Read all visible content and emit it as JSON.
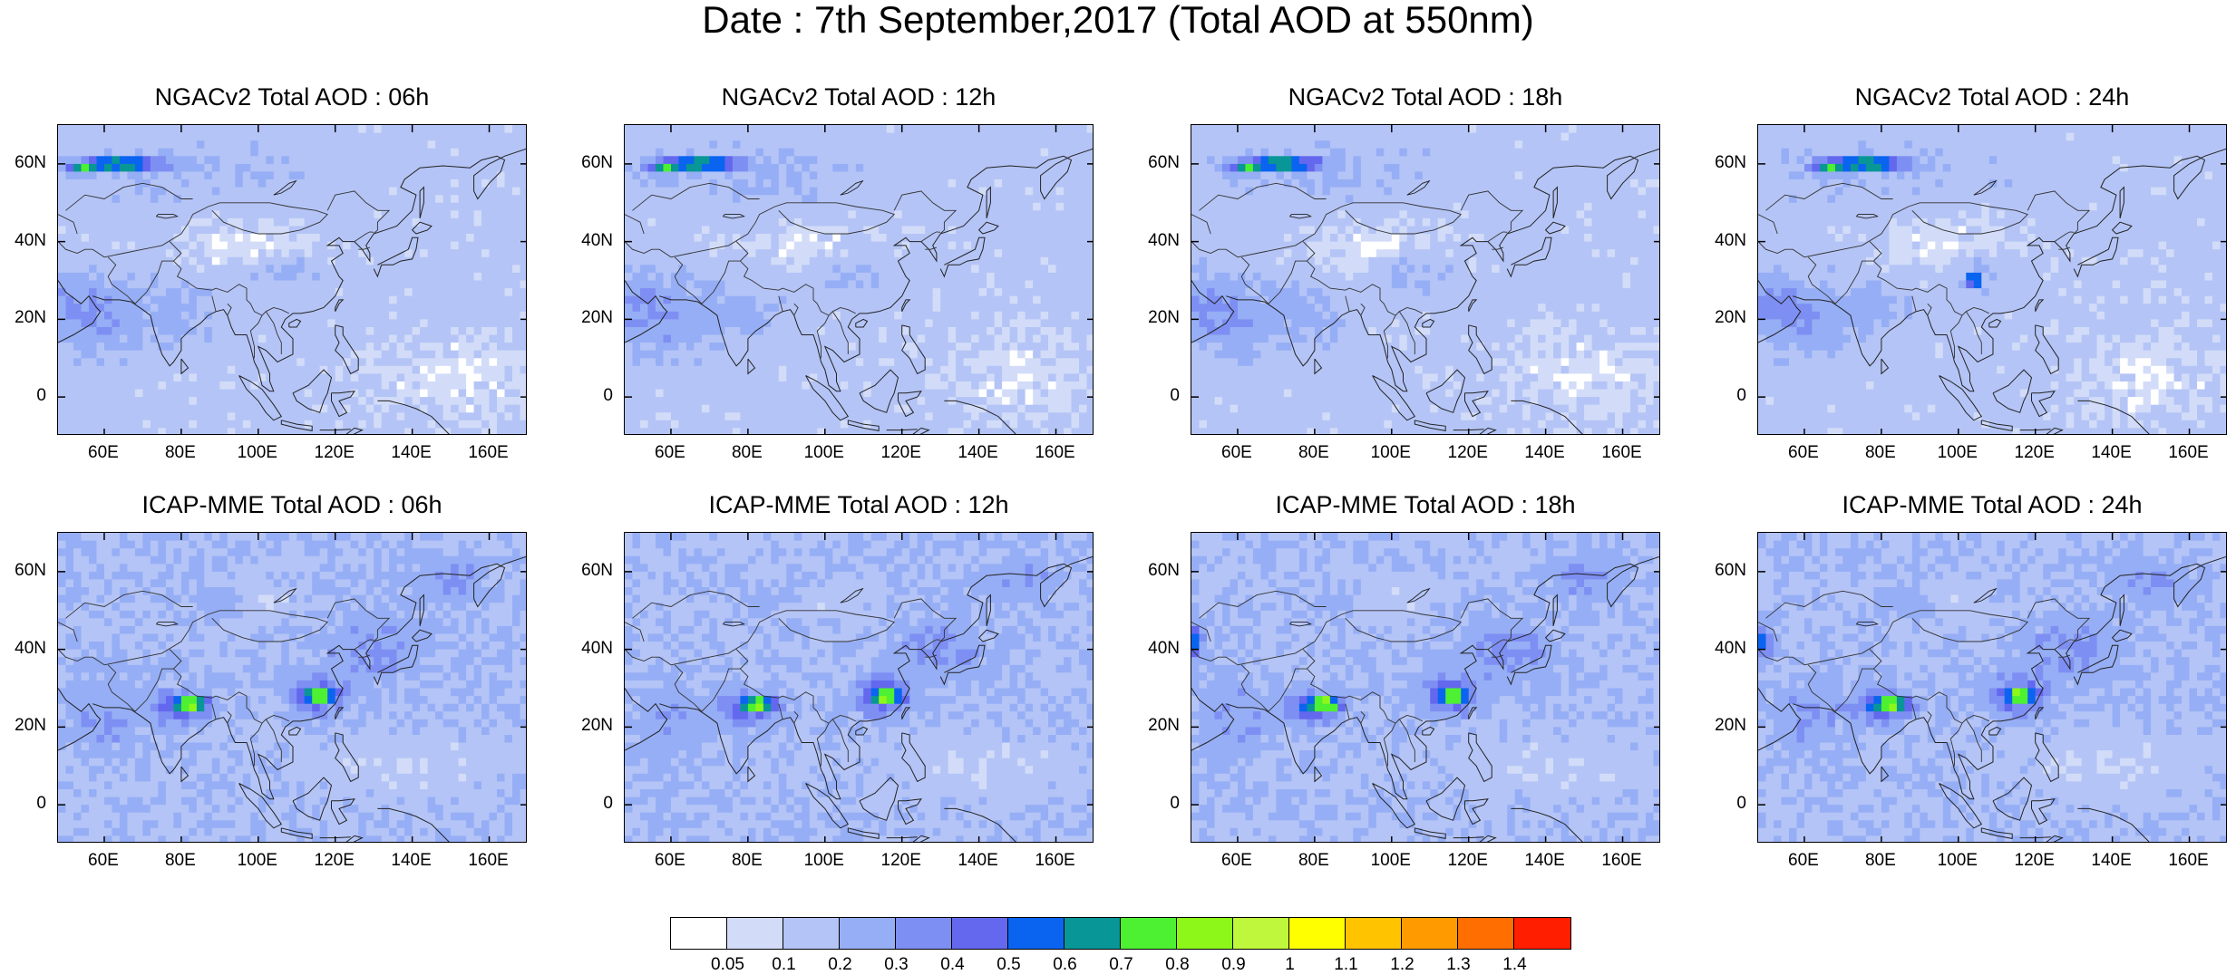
{
  "main_title": "Date : 7th September,2017 (Total AOD at 550nm)",
  "axes": {
    "lon_ticks": [
      "60E",
      "80E",
      "100E",
      "120E",
      "140E",
      "160E"
    ],
    "lon_values": [
      60,
      80,
      100,
      120,
      140,
      160
    ],
    "lat_ticks": [
      "60N",
      "40N",
      "20N",
      "0"
    ],
    "lat_values": [
      60,
      40,
      20,
      0
    ],
    "lon_range": [
      48,
      170
    ],
    "lat_range": [
      -10,
      70
    ]
  },
  "panels": [
    {
      "title": "NGACv2 Total AOD : 06h"
    },
    {
      "title": "NGACv2 Total AOD : 12h"
    },
    {
      "title": "NGACv2 Total AOD : 18h"
    },
    {
      "title": "NGACv2 Total AOD : 24h"
    },
    {
      "title": "ICAP-MME Total AOD : 06h"
    },
    {
      "title": "ICAP-MME Total AOD : 12h"
    },
    {
      "title": "ICAP-MME Total AOD : 18h"
    },
    {
      "title": "ICAP-MME Total AOD : 24h"
    }
  ],
  "colorbar": {
    "labels": [
      "0.05",
      "0.1",
      "0.2",
      "0.3",
      "0.4",
      "0.5",
      "0.6",
      "0.7",
      "0.8",
      "0.9",
      "1",
      "1.1",
      "1.2",
      "1.3",
      "1.4"
    ],
    "colors": [
      "#ffffff",
      "#d2dcf8",
      "#b4c4f6",
      "#96aef5",
      "#7e8ff3",
      "#6468ee",
      "#0a64f0",
      "#099696",
      "#4ef032",
      "#8ef71a",
      "#bff73c",
      "#ffff00",
      "#ffc300",
      "#ff9b00",
      "#ff6e00",
      "#ff1e00"
    ]
  }
}
